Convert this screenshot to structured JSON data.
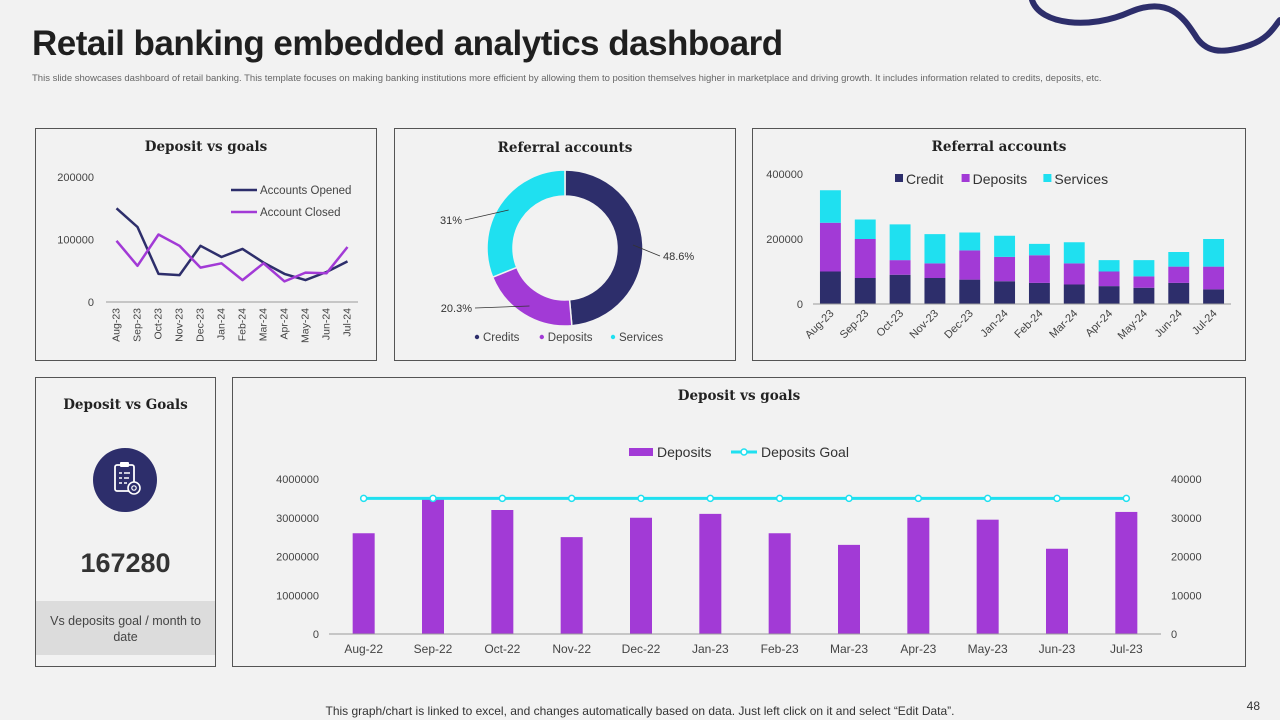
{
  "page": {
    "title": "Retail banking embedded analytics dashboard",
    "subtitle": "This slide showcases dashboard of retail banking. This template focuses on making banking institutions more efficient by allowing them to position themselves higher in marketplace and driving growth. It includes information related to  credits, deposits, etc.",
    "footer": "This graph/chart is linked to excel, and changes automatically based on data. Just left click on it and select “Edit Data”.",
    "page_number": "48",
    "colors": {
      "navy": "#2d2e6b",
      "purple": "#a23ad6",
      "cyan": "#1fe0f0",
      "background": "#f2f2f2"
    }
  },
  "kpi": {
    "title": "Deposit vs Goals",
    "value": "167280",
    "caption": "Vs deposits goal / month to date",
    "icon": "clipboard-checklist-icon"
  },
  "chart_data": [
    {
      "type": "line",
      "title": "Deposit vs goals",
      "categories": [
        "Aug-23",
        "Sep-23",
        "Oct-23",
        "Nov-23",
        "Dec-23",
        "Jan-24",
        "Feb-24",
        "Mar-24",
        "Apr-24",
        "May-24",
        "Jun-24",
        "Jul-24"
      ],
      "series": [
        {
          "name": "Accounts Opened",
          "color": "#2d2e6b",
          "values": [
            150000,
            120000,
            45000,
            43000,
            90000,
            72000,
            85000,
            63000,
            45000,
            35000,
            48000,
            65000
          ]
        },
        {
          "name": "Account Closed",
          "color": "#a23ad6",
          "values": [
            98000,
            58000,
            108000,
            90000,
            55000,
            62000,
            35000,
            62000,
            33000,
            47000,
            46000,
            88000
          ]
        }
      ],
      "ylim": [
        0,
        200000
      ],
      "yticks": [
        "0",
        "100000",
        "200000"
      ],
      "legend": "top-right"
    },
    {
      "type": "pie",
      "title": "Referral accounts",
      "slices": [
        {
          "name": "Credits",
          "value": 48.6,
          "label": "48.6%",
          "color": "#2d2e6b"
        },
        {
          "name": "Deposits",
          "value": 20.3,
          "label": "20.3%",
          "color": "#a23ad6"
        },
        {
          "name": "Services",
          "value": 31.1,
          "label": "31%",
          "color": "#1fe0f0"
        }
      ],
      "legend": "bottom"
    },
    {
      "type": "bar",
      "stacked": true,
      "title": "Referral accounts",
      "categories": [
        "Aug-23",
        "Sep-23",
        "Oct-23",
        "Nov-23",
        "Dec-23",
        "Jan-24",
        "Feb-24",
        "Mar-24",
        "Apr-24",
        "May-24",
        "Jun-24",
        "Jul-24"
      ],
      "series": [
        {
          "name": "Credit",
          "color": "#2d2e6b",
          "values": [
            100000,
            80000,
            90000,
            80000,
            75000,
            70000,
            65000,
            60000,
            55000,
            50000,
            65000,
            45000
          ]
        },
        {
          "name": "Deposits",
          "color": "#a23ad6",
          "values": [
            150000,
            120000,
            45000,
            45000,
            90000,
            75000,
            85000,
            65000,
            45000,
            35000,
            50000,
            70000
          ]
        },
        {
          "name": "Services",
          "color": "#1fe0f0",
          "values": [
            100000,
            60000,
            110000,
            90000,
            55000,
            65000,
            35000,
            65000,
            35000,
            50000,
            45000,
            85000
          ]
        }
      ],
      "ylim": [
        0,
        400000
      ],
      "yticks": [
        "0",
        "200000",
        "400000"
      ],
      "legend": "top"
    },
    {
      "type": "bar",
      "title": "Deposit vs goals",
      "categories": [
        "Aug-22",
        "Sep-22",
        "Oct-22",
        "Nov-22",
        "Dec-22",
        "Jan-23",
        "Feb-23",
        "Mar-23",
        "Apr-23",
        "May-23",
        "Jun-23",
        "Jul-23"
      ],
      "series": [
        {
          "name": "Deposits",
          "type": "bar",
          "axis": "left",
          "color": "#a23ad6",
          "values": [
            2600000,
            3500000,
            3200000,
            2500000,
            3000000,
            3100000,
            2600000,
            2300000,
            3000000,
            2950000,
            2200000,
            3150000
          ]
        },
        {
          "name": "Deposits Goal",
          "type": "line",
          "axis": "right",
          "color": "#1fe0f0",
          "values": [
            35000,
            35000,
            35000,
            35000,
            35000,
            35000,
            35000,
            35000,
            35000,
            35000,
            35000,
            35000
          ]
        }
      ],
      "ylim": [
        0,
        4000000
      ],
      "y2lim": [
        0,
        40000
      ],
      "yticks": [
        "0",
        "1000000",
        "2000000",
        "3000000",
        "4000000"
      ],
      "y2ticks": [
        "0",
        "10000",
        "20000",
        "30000",
        "40000"
      ],
      "legend": "top"
    }
  ]
}
